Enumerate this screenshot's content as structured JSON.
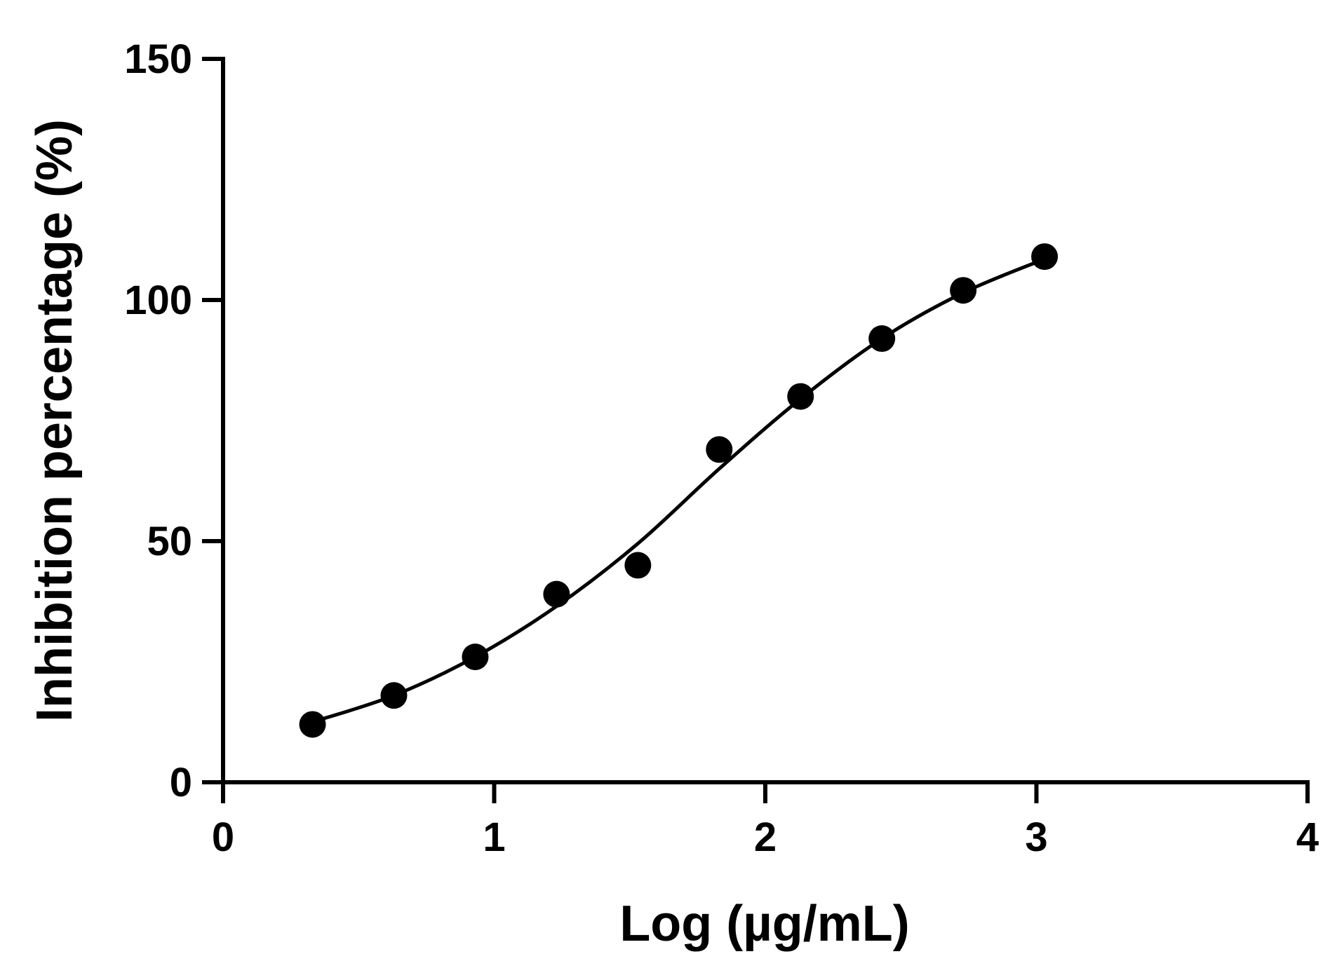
{
  "chart_data": {
    "type": "scatter",
    "title": "",
    "xlabel": "Log (µg/mL)",
    "ylabel": "Inhibition percentage (%)",
    "xlim": [
      0,
      4
    ],
    "ylim": [
      0,
      150
    ],
    "x_ticks": [
      0,
      1,
      2,
      3,
      4
    ],
    "y_ticks": [
      0,
      50,
      100,
      150
    ],
    "x_tick_labels": [
      "0",
      "1",
      "2",
      "3",
      "4"
    ],
    "y_tick_labels": [
      "0",
      "50",
      "100",
      "150"
    ],
    "grid": false,
    "legend": "none",
    "colors": {
      "points": "#000000",
      "curve": "#000000",
      "axes": "#000000"
    },
    "series": [
      {
        "kind": "points",
        "x": [
          0.33,
          0.63,
          0.93,
          1.23,
          1.53,
          1.83,
          2.13,
          2.43,
          2.73,
          3.03
        ],
        "y": [
          12,
          18,
          26,
          39,
          45,
          69,
          80,
          92,
          102,
          109
        ]
      },
      {
        "kind": "fit",
        "x": [
          0.33,
          0.63,
          0.93,
          1.23,
          1.53,
          1.83,
          2.13,
          2.43,
          2.73,
          3.03
        ],
        "y": [
          12.5,
          18,
          26,
          36.5,
          49.5,
          65,
          79.5,
          92,
          101.5,
          108.5
        ]
      }
    ]
  }
}
